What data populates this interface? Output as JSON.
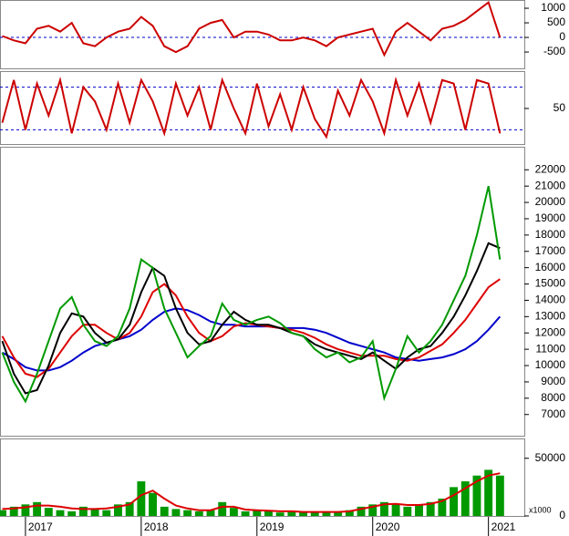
{
  "chart_data": [
    {
      "type": "line",
      "x": [
        2016.8,
        2016.9,
        2017.0,
        2017.1,
        2017.2,
        2017.3,
        2017.4,
        2017.5,
        2017.6,
        2017.7,
        2017.8,
        2017.9,
        2018.0,
        2018.1,
        2018.2,
        2018.3,
        2018.4,
        2018.5,
        2018.6,
        2018.7,
        2018.8,
        2018.9,
        2019.0,
        2019.1,
        2019.2,
        2019.3,
        2019.4,
        2019.5,
        2019.6,
        2019.7,
        2019.8,
        2019.9,
        2020.0,
        2020.1,
        2020.2,
        2020.3,
        2020.4,
        2020.5,
        2020.6,
        2020.7,
        2020.8,
        2020.9,
        2021.0,
        2021.1
      ],
      "xlim": [
        2016.78,
        2021.31
      ],
      "ylim": [
        -1060,
        1220
      ],
      "yticks": [
        1000,
        500,
        0,
        -500
      ],
      "hlines": [
        0
      ],
      "series": [
        {
          "color": "#cc0000",
          "values": [
            50,
            -100,
            -200,
            300,
            400,
            200,
            500,
            -200,
            -300,
            0,
            200,
            300,
            700,
            400,
            -300,
            -500,
            -300,
            300,
            500,
            600,
            0,
            200,
            200,
            100,
            -100,
            -100,
            0,
            -100,
            -300,
            0,
            100,
            200,
            300,
            -600,
            200,
            500,
            200,
            -100,
            300,
            400,
            600,
            900,
            1200,
            0
          ]
        }
      ]
    },
    {
      "type": "line",
      "x": [
        2016.8,
        2016.9,
        2017.0,
        2017.1,
        2017.2,
        2017.3,
        2017.4,
        2017.5,
        2017.6,
        2017.7,
        2017.8,
        2017.9,
        2018.0,
        2018.1,
        2018.2,
        2018.3,
        2018.4,
        2018.5,
        2018.6,
        2018.7,
        2018.8,
        2018.9,
        2019.0,
        2019.1,
        2019.2,
        2019.3,
        2019.4,
        2019.5,
        2019.6,
        2019.7,
        2019.8,
        2019.9,
        2020.0,
        2020.1,
        2020.2,
        2020.3,
        2020.4,
        2020.5,
        2020.6,
        2020.7,
        2020.8,
        2020.9,
        2021.0,
        2021.1
      ],
      "xlim": [
        2016.78,
        2021.31
      ],
      "ylim": [
        0,
        100
      ],
      "yticks": [
        50
      ],
      "hlines": [
        80,
        20
      ],
      "series": [
        {
          "color": "#cc0000",
          "values": [
            30,
            90,
            20,
            85,
            40,
            90,
            15,
            80,
            60,
            20,
            85,
            30,
            90,
            60,
            15,
            85,
            40,
            80,
            20,
            90,
            50,
            15,
            85,
            25,
            70,
            20,
            80,
            35,
            10,
            75,
            40,
            90,
            60,
            15,
            90,
            40,
            85,
            30,
            90,
            85,
            20,
            90,
            85,
            15
          ]
        }
      ]
    },
    {
      "type": "line",
      "x": [
        2016.8,
        2016.9,
        2017.0,
        2017.1,
        2017.2,
        2017.3,
        2017.4,
        2017.5,
        2017.6,
        2017.7,
        2017.8,
        2017.9,
        2018.0,
        2018.1,
        2018.2,
        2018.3,
        2018.4,
        2018.5,
        2018.6,
        2018.7,
        2018.8,
        2018.9,
        2019.0,
        2019.1,
        2019.2,
        2019.3,
        2019.4,
        2019.5,
        2019.6,
        2019.7,
        2019.8,
        2019.9,
        2020.0,
        2020.1,
        2020.2,
        2020.3,
        2020.4,
        2020.5,
        2020.6,
        2020.7,
        2020.8,
        2020.9,
        2021.0,
        2021.1
      ],
      "xlim": [
        2016.78,
        2021.31
      ],
      "ylim": [
        5700,
        23300
      ],
      "yticks": [
        22000,
        21000,
        20000,
        19000,
        18000,
        17000,
        16000,
        15000,
        14000,
        13000,
        12000,
        11000,
        10000,
        9000,
        8000,
        7000
      ],
      "series": [
        {
          "color": "#0000cc",
          "values": [
            10800,
            10400,
            9900,
            9700,
            9700,
            9900,
            10300,
            10800,
            11200,
            11400,
            11600,
            11800,
            12200,
            12800,
            13300,
            13500,
            13400,
            13100,
            12700,
            12500,
            12500,
            12400,
            12400,
            12400,
            12300,
            12300,
            12300,
            12200,
            12000,
            11700,
            11400,
            11200,
            11000,
            10800,
            10500,
            10400,
            10300,
            10400,
            10500,
            10700,
            11000,
            11500,
            12200,
            13000
          ]
        },
        {
          "color": "#dd0000",
          "values": [
            11800,
            10500,
            9500,
            9300,
            9800,
            10800,
            11800,
            12500,
            12500,
            12000,
            11600,
            12000,
            13000,
            14500,
            15000,
            14300,
            13000,
            12000,
            11500,
            11800,
            12400,
            12600,
            12500,
            12400,
            12300,
            12200,
            12000,
            11700,
            11300,
            11000,
            10800,
            10600,
            10600,
            10600,
            10400,
            10300,
            10500,
            10900,
            11300,
            12000,
            12800,
            13800,
            14800,
            15300
          ]
        },
        {
          "color": "#000000",
          "values": [
            11500,
            9500,
            8300,
            8500,
            10000,
            12000,
            13200,
            13000,
            12000,
            11400,
            11600,
            12500,
            14500,
            16000,
            15500,
            13500,
            12000,
            11300,
            11500,
            12500,
            13300,
            12800,
            12500,
            12500,
            12300,
            12000,
            11800,
            11300,
            11000,
            10800,
            10600,
            10400,
            10800,
            10300,
            9800,
            10500,
            11000,
            11200,
            12000,
            13000,
            14300,
            15800,
            17500,
            17200
          ]
        },
        {
          "color": "#009900",
          "values": [
            10800,
            9000,
            7800,
            9500,
            11500,
            13500,
            14200,
            12500,
            11500,
            11200,
            11800,
            13500,
            16500,
            16000,
            13500,
            12000,
            10500,
            11200,
            11800,
            13800,
            12800,
            12500,
            12800,
            13000,
            12600,
            12000,
            11800,
            11000,
            10500,
            10800,
            10200,
            10500,
            11500,
            8000,
            9800,
            11800,
            10800,
            11500,
            12500,
            14000,
            15500,
            18000,
            21000,
            16500
          ]
        }
      ]
    },
    {
      "type": "combo",
      "x": [
        2016.8,
        2016.9,
        2017.0,
        2017.1,
        2017.2,
        2017.3,
        2017.4,
        2017.5,
        2017.6,
        2017.7,
        2017.8,
        2017.9,
        2018.0,
        2018.1,
        2018.2,
        2018.3,
        2018.4,
        2018.5,
        2018.6,
        2018.7,
        2018.8,
        2018.9,
        2019.0,
        2019.1,
        2019.2,
        2019.3,
        2019.4,
        2019.5,
        2019.6,
        2019.7,
        2019.8,
        2019.9,
        2020.0,
        2020.1,
        2020.2,
        2020.3,
        2020.4,
        2020.5,
        2020.6,
        2020.7,
        2020.8,
        2020.9,
        2021.0,
        2021.1
      ],
      "xlim": [
        2016.78,
        2021.31
      ],
      "ylim": [
        0,
        65600
      ],
      "yticks": [
        50000,
        0
      ],
      "unit_label": "x1000",
      "xticks": [
        2017,
        2018,
        2019,
        2020,
        2021
      ],
      "series": [
        {
          "type": "bar",
          "color": "#009900",
          "values": [
            5000,
            8000,
            10000,
            12000,
            7000,
            5000,
            4000,
            8000,
            6000,
            5000,
            10000,
            12000,
            30000,
            20000,
            8000,
            6000,
            5000,
            4000,
            5000,
            12000,
            7000,
            4000,
            5000,
            4000,
            3000,
            4000,
            3000,
            3000,
            4000,
            3000,
            5000,
            8000,
            10000,
            12000,
            10000,
            8000,
            10000,
            12000,
            15000,
            25000,
            30000,
            35000,
            40000,
            35000
          ]
        },
        {
          "type": "line",
          "color": "#dd0000",
          "values": [
            6000,
            6500,
            7500,
            9000,
            9000,
            8000,
            6500,
            6000,
            6000,
            6500,
            8000,
            10000,
            18000,
            22000,
            15000,
            9000,
            6500,
            5000,
            5000,
            8000,
            8000,
            5500,
            5000,
            4500,
            4000,
            4000,
            3500,
            3500,
            3500,
            3500,
            4000,
            6000,
            8000,
            10000,
            10500,
            9500,
            9500,
            10500,
            13000,
            18000,
            24000,
            30000,
            35000,
            37000
          ]
        }
      ]
    }
  ]
}
